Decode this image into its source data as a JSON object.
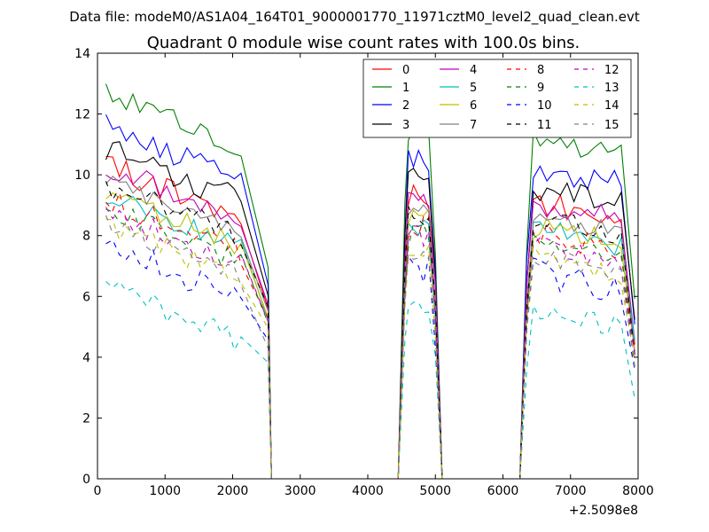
{
  "chart_data": {
    "type": "line",
    "suptitle": "Data file: modeM0/AS1A04_164T01_9000001770_11971cztM0_level2_quad_clean.evt",
    "title": "Quadrant 0 module wise count rates with 100.0s bins.",
    "xlabel": "",
    "ylabel": "",
    "x_offset_label": "+2.5098e8",
    "xlim": [
      0,
      8000
    ],
    "ylim": [
      0,
      14
    ],
    "xticks": [
      "0",
      "1000",
      "2000",
      "3000",
      "4000",
      "5000",
      "6000",
      "7000",
      "8000"
    ],
    "yticks": [
      "0",
      "2",
      "4",
      "6",
      "8",
      "10",
      "12",
      "14"
    ],
    "legend_position": "top-right",
    "segments": [
      {
        "start": 125,
        "step": 100,
        "count": 21,
        "decay": 0.8
      },
      {
        "start": 4550,
        "step": 100,
        "count": 5,
        "decay": 0.0
      },
      {
        "start": 6450,
        "step": 100,
        "count": 14,
        "decay": 0.5
      }
    ],
    "ramps": [
      {
        "from": 2425,
        "to": 2525,
        "type": "down-start"
      },
      {
        "from": 4450,
        "to": 4550,
        "type": "up"
      },
      {
        "from": 4950,
        "to": 5000,
        "type": "down-mid"
      },
      {
        "from": 5050,
        "to": 5100,
        "type": "down-end"
      },
      {
        "from": 6250,
        "to": 6350,
        "type": "up"
      },
      {
        "from": 7850,
        "to": 7950,
        "type": "down-end"
      }
    ],
    "series": [
      {
        "name": "0",
        "color": "#ff0000",
        "dash": "solid",
        "level": 10.3,
        "noise": 0.45
      },
      {
        "name": "1",
        "color": "#008000",
        "dash": "solid",
        "level": 12.7,
        "noise": 0.35
      },
      {
        "name": "2",
        "color": "#0000ff",
        "dash": "solid",
        "level": 11.6,
        "noise": 0.4
      },
      {
        "name": "3",
        "color": "#000000",
        "dash": "solid",
        "level": 10.9,
        "noise": 0.45
      },
      {
        "name": "4",
        "color": "#bf00bf",
        "dash": "solid",
        "level": 10.3,
        "noise": 0.4
      },
      {
        "name": "5",
        "color": "#00bfbf",
        "dash": "solid",
        "level": 9.3,
        "noise": 0.4
      },
      {
        "name": "6",
        "color": "#bfbf00",
        "dash": "solid",
        "level": 9.4,
        "noise": 0.4
      },
      {
        "name": "7",
        "color": "#808080",
        "dash": "solid",
        "level": 9.8,
        "noise": 0.3
      },
      {
        "name": "8",
        "color": "#ff0000",
        "dash": "dashed",
        "level": 9.2,
        "noise": 0.45
      },
      {
        "name": "9",
        "color": "#008000",
        "dash": "dashed",
        "level": 8.9,
        "noise": 0.4
      },
      {
        "name": "10",
        "color": "#0000ff",
        "dash": "dashed",
        "level": 7.7,
        "noise": 0.5
      },
      {
        "name": "11",
        "color": "#000000",
        "dash": "dashed",
        "level": 9.7,
        "noise": 0.45
      },
      {
        "name": "12",
        "color": "#bf00bf",
        "dash": "dashed",
        "level": 8.8,
        "noise": 0.4
      },
      {
        "name": "13",
        "color": "#00bfbf",
        "dash": "dashed",
        "level": 6.3,
        "noise": 0.4
      },
      {
        "name": "14",
        "color": "#bfbf00",
        "dash": "dashed",
        "level": 8.3,
        "noise": 0.4
      },
      {
        "name": "15",
        "color": "#808080",
        "dash": "dashed",
        "level": 8.4,
        "noise": 0.35
      }
    ]
  }
}
